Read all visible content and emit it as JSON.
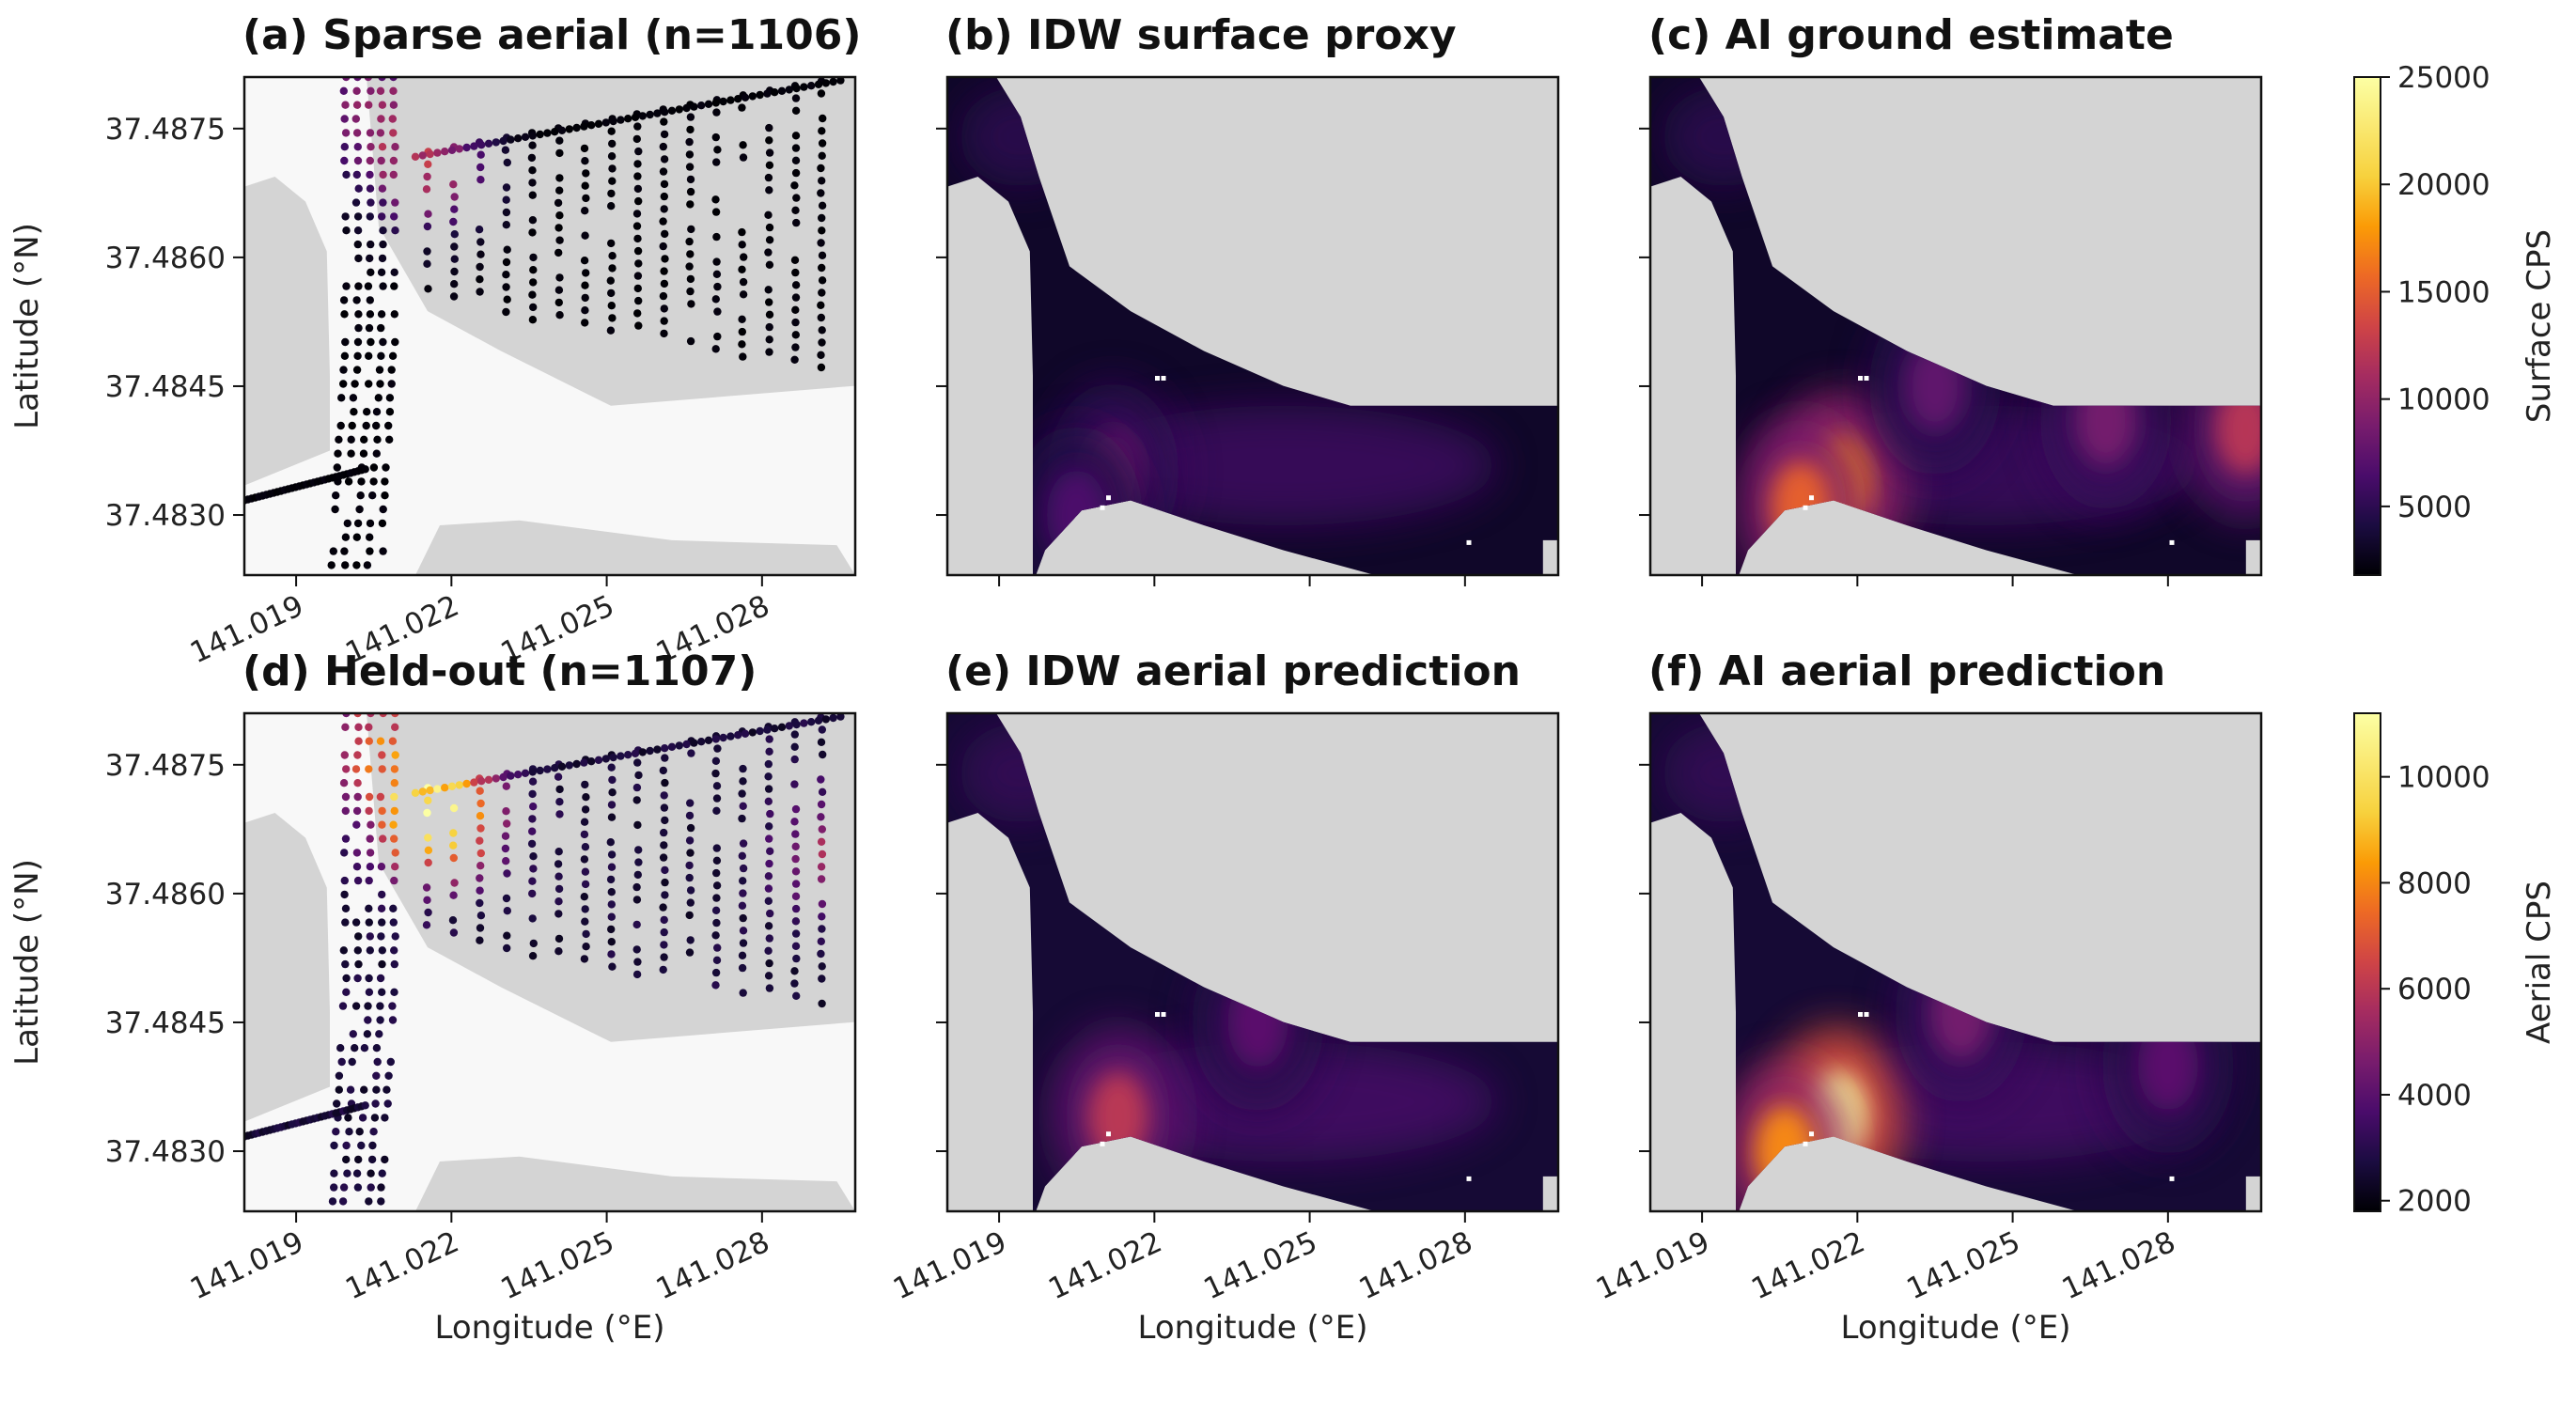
{
  "chart_data": [
    {
      "type": "scatter",
      "panel": "a",
      "title": "(a) Sparse aerial (n=1106)",
      "n": 1106,
      "xlabel": "",
      "ylabel": "Latitude (°N)",
      "xlim": [
        141.018,
        141.0298
      ],
      "ylim": [
        37.4823,
        37.4881
      ],
      "xticks": [
        "141.019",
        "141.022",
        "141.025",
        "141.028"
      ],
      "yticks": [
        "37.4875",
        "37.4860",
        "37.4845",
        "37.4830"
      ],
      "colormap": "inferno",
      "color_scale": "surface",
      "peaks": [
        {
          "lon": 141.0204,
          "lat": 37.4878,
          "value": 9000
        },
        {
          "lon": 141.0215,
          "lat": 37.487,
          "value": 11000
        }
      ]
    },
    {
      "type": "heatmap",
      "panel": "b",
      "title": "(b) IDW surface proxy",
      "xlim": [
        141.018,
        141.0298
      ],
      "ylim": [
        37.4823,
        37.4881
      ],
      "colormap": "inferno",
      "color_scale": "surface",
      "peaks": [
        {
          "lon": 141.0212,
          "lat": 37.4835,
          "value": 8000
        },
        {
          "lon": 141.0205,
          "lat": 37.483,
          "value": 6500
        }
      ]
    },
    {
      "type": "heatmap",
      "panel": "c",
      "title": "(c) AI ground estimate",
      "xlim": [
        141.018,
        141.0298
      ],
      "ylim": [
        37.4823,
        37.4881
      ],
      "colormap": "inferno",
      "color_scale": "surface",
      "peaks": [
        {
          "lon": 141.0217,
          "lat": 37.4834,
          "value": 17000
        },
        {
          "lon": 141.0209,
          "lat": 37.4831,
          "value": 15000
        },
        {
          "lon": 141.0295,
          "lat": 37.484,
          "value": 12000
        },
        {
          "lon": 141.0268,
          "lat": 37.4841,
          "value": 8500
        },
        {
          "lon": 141.0235,
          "lat": 37.4845,
          "value": 7500
        }
      ]
    },
    {
      "type": "scatter",
      "panel": "d",
      "title": "(d) Held-out (n=1107)",
      "n": 1107,
      "xlabel": "Longitude (°E)",
      "ylabel": "Latitude (°N)",
      "xlim": [
        141.018,
        141.0298
      ],
      "ylim": [
        37.4823,
        37.4881
      ],
      "xticks": [
        "141.019",
        "141.022",
        "141.025",
        "141.028"
      ],
      "yticks": [
        "37.4875",
        "37.4860",
        "37.4845",
        "37.4830"
      ],
      "colormap": "inferno",
      "color_scale": "aerial",
      "peaks": [
        {
          "lon": 141.0217,
          "lat": 37.4869,
          "value": 11000
        },
        {
          "lon": 141.0206,
          "lat": 37.4878,
          "value": 6500
        },
        {
          "lon": 141.0295,
          "lat": 37.4865,
          "value": 5500
        }
      ]
    },
    {
      "type": "heatmap",
      "panel": "e",
      "title": "(e) IDW aerial prediction",
      "xlabel": "Longitude (°E)",
      "xlim": [
        141.018,
        141.0298
      ],
      "ylim": [
        37.4823,
        37.4881
      ],
      "xticks": [
        "141.019",
        "141.022",
        "141.025",
        "141.028"
      ],
      "colormap": "inferno",
      "color_scale": "aerial",
      "peaks": [
        {
          "lon": 141.0213,
          "lat": 37.4834,
          "value": 6000
        },
        {
          "lon": 141.024,
          "lat": 37.4845,
          "value": 4000
        }
      ]
    },
    {
      "type": "heatmap",
      "panel": "f",
      "title": "(f) AI aerial prediction",
      "xlabel": "Longitude (°E)",
      "xlim": [
        141.018,
        141.0298
      ],
      "ylim": [
        37.4823,
        37.4881
      ],
      "xticks": [
        "141.019",
        "141.022",
        "141.025",
        "141.028"
      ],
      "colormap": "inferno",
      "color_scale": "aerial",
      "peaks": [
        {
          "lon": 141.0216,
          "lat": 37.4834,
          "value": 11000
        },
        {
          "lon": 141.0206,
          "lat": 37.483,
          "value": 8000
        },
        {
          "lon": 141.024,
          "lat": 37.4846,
          "value": 4500
        },
        {
          "lon": 141.028,
          "lat": 37.484,
          "value": 4000
        }
      ]
    }
  ],
  "colorbars": {
    "surface": {
      "label": "Surface CPS",
      "range": [
        1800,
        25000
      ],
      "ticks": [
        25000,
        20000,
        15000,
        10000,
        5000
      ],
      "colormap": "inferno"
    },
    "aerial": {
      "label": "Aerial CPS",
      "range": [
        1800,
        11200
      ],
      "ticks": [
        10000,
        8000,
        6000,
        4000,
        2000
      ],
      "colormap": "inferno"
    }
  },
  "colors": {
    "land_mask": "#d4d4d4",
    "outside_survey": "#f8f8f8",
    "axes_frame": "#111111"
  }
}
